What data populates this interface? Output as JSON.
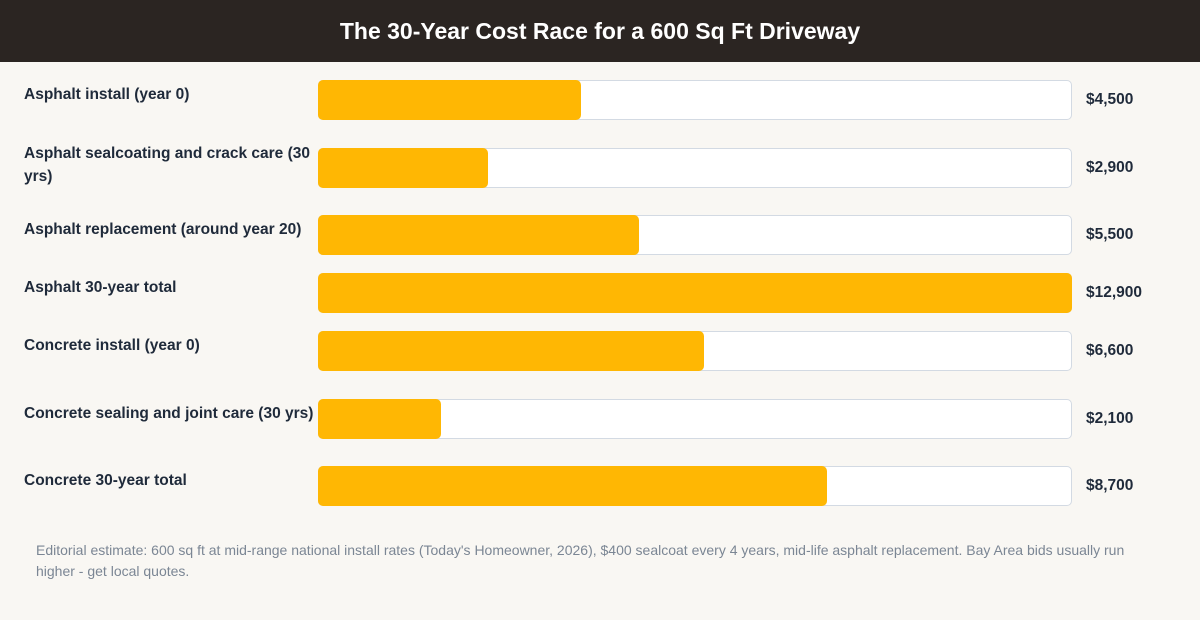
{
  "header": {
    "title": "The 30-Year Cost Race for a 600 Sq Ft Driveway"
  },
  "chart_data": {
    "type": "bar",
    "orientation": "horizontal",
    "title": "The 30-Year Cost Race for a 600 Sq Ft Driveway",
    "xlim": [
      0,
      12900
    ],
    "categories": [
      "Asphalt install (year 0)",
      "Asphalt sealcoating and crack care (30 yrs)",
      "Asphalt replacement (around year 20)",
      "Asphalt 30-year total",
      "Concrete install (year 0)",
      "Concrete sealing and joint care (30 yrs)",
      "Concrete 30-year total"
    ],
    "values": [
      4500,
      2900,
      5500,
      12900,
      6600,
      2100,
      8700
    ],
    "value_labels": [
      "$4,500",
      "$2,900",
      "$5,500",
      "$12,900",
      "$6,600",
      "$2,100",
      "$8,700"
    ],
    "bar_color": "#ffb703",
    "track_color": "#ffffff",
    "grid": false,
    "legend": "none"
  },
  "footnote": "Editorial estimate: 600 sq ft at mid-range national install rates (Today's Homeowner, 2026), $400 sealcoat every 4 years, mid-life asphalt replacement. Bay Area bids usually run higher - get local quotes."
}
